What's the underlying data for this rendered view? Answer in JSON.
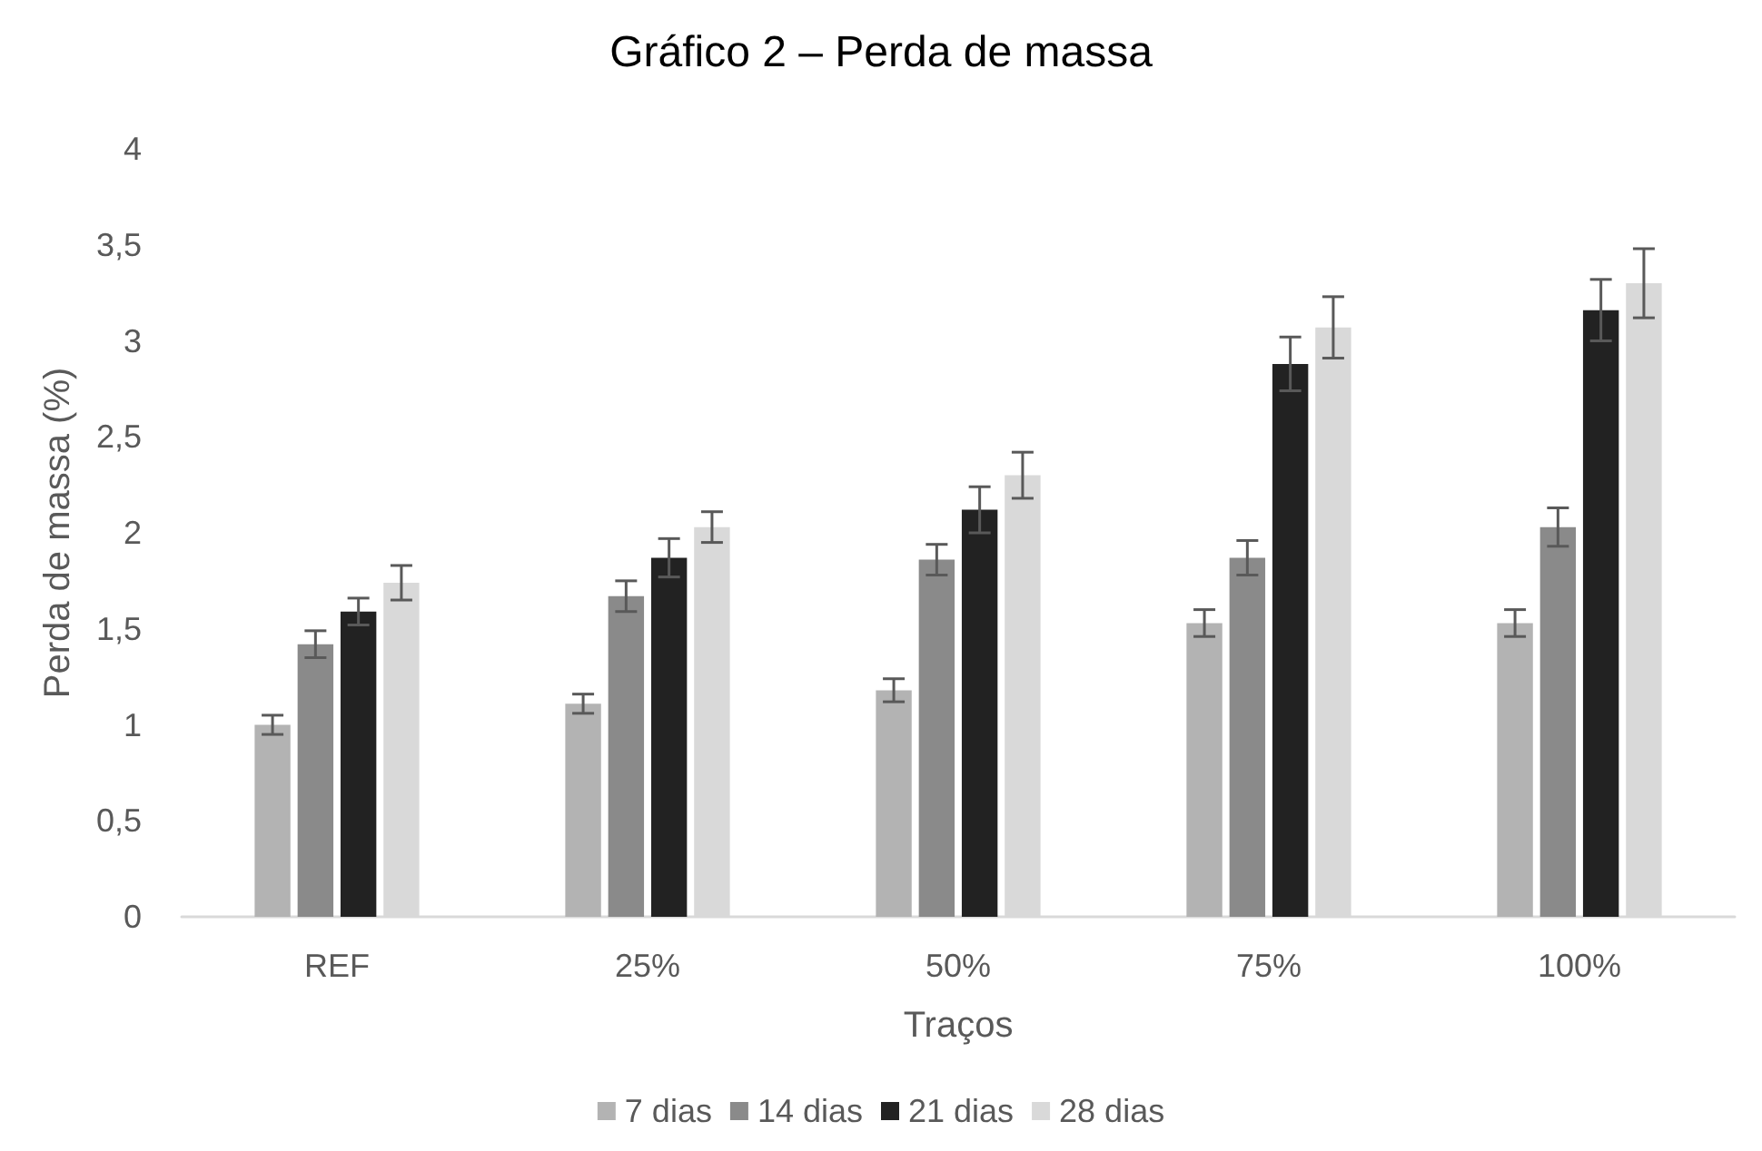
{
  "chart_data": {
    "type": "bar",
    "title": "Gráfico 2 – Perda de massa",
    "xlabel": "Traços",
    "ylabel": "Perda de massa (%)",
    "categories": [
      "REF",
      "25%",
      "50%",
      "75%",
      "100%"
    ],
    "series": [
      {
        "name": "7 dias",
        "color": "#b3b3b3",
        "values": [
          1.0,
          1.11,
          1.18,
          1.53,
          1.53
        ],
        "errors": [
          0.05,
          0.05,
          0.06,
          0.07,
          0.07
        ]
      },
      {
        "name": "14 dias",
        "color": "#8a8a8a",
        "values": [
          1.42,
          1.67,
          1.86,
          1.87,
          2.03
        ],
        "errors": [
          0.07,
          0.08,
          0.08,
          0.09,
          0.1
        ]
      },
      {
        "name": "21 dias",
        "color": "#222222",
        "values": [
          1.59,
          1.87,
          2.12,
          2.88,
          3.16
        ],
        "errors": [
          0.07,
          0.1,
          0.12,
          0.14,
          0.16
        ]
      },
      {
        "name": "28 dias",
        "color": "#d9d9d9",
        "values": [
          1.74,
          2.03,
          2.3,
          3.07,
          3.3
        ],
        "errors": [
          0.09,
          0.08,
          0.12,
          0.16,
          0.18
        ]
      }
    ],
    "ylim": [
      0,
      4
    ],
    "yticks": [
      {
        "value": 0,
        "label": "0"
      },
      {
        "value": 0.5,
        "label": "0,5"
      },
      {
        "value": 1,
        "label": "1"
      },
      {
        "value": 1.5,
        "label": "1,5"
      },
      {
        "value": 2,
        "label": "2"
      },
      {
        "value": 2.5,
        "label": "2,5"
      },
      {
        "value": 3,
        "label": "3"
      },
      {
        "value": 3.5,
        "label": "3,5"
      },
      {
        "value": 4,
        "label": "4"
      }
    ],
    "grid": false,
    "legend": "bottom"
  }
}
